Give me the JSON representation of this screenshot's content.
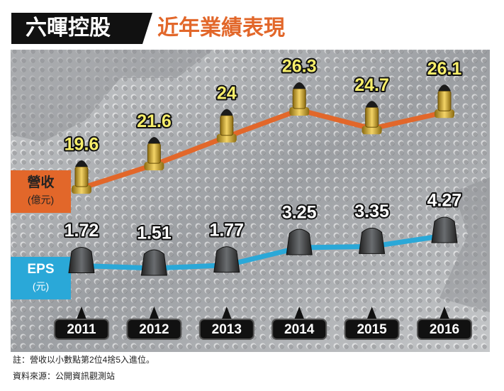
{
  "chart_data": {
    "type": "line",
    "title": "六暉控股",
    "subtitle": "近年業績表現",
    "categories": [
      "2011",
      "2012",
      "2013",
      "2014",
      "2015",
      "2016"
    ],
    "series": [
      {
        "name": "營收",
        "unit_label": "(億元)",
        "color": "#e2672a",
        "values": [
          19.6,
          21.6,
          24,
          26.3,
          24.7,
          26.1
        ]
      },
      {
        "name": "EPS",
        "unit_label": "(元)",
        "color": "#2aa8d8",
        "values": [
          1.72,
          1.51,
          1.77,
          3.25,
          3.35,
          4.27
        ]
      }
    ],
    "notes": [
      "註：營收以小數點第2位4捨5入進位。",
      "資料來源：公開資訊觀測站"
    ]
  }
}
